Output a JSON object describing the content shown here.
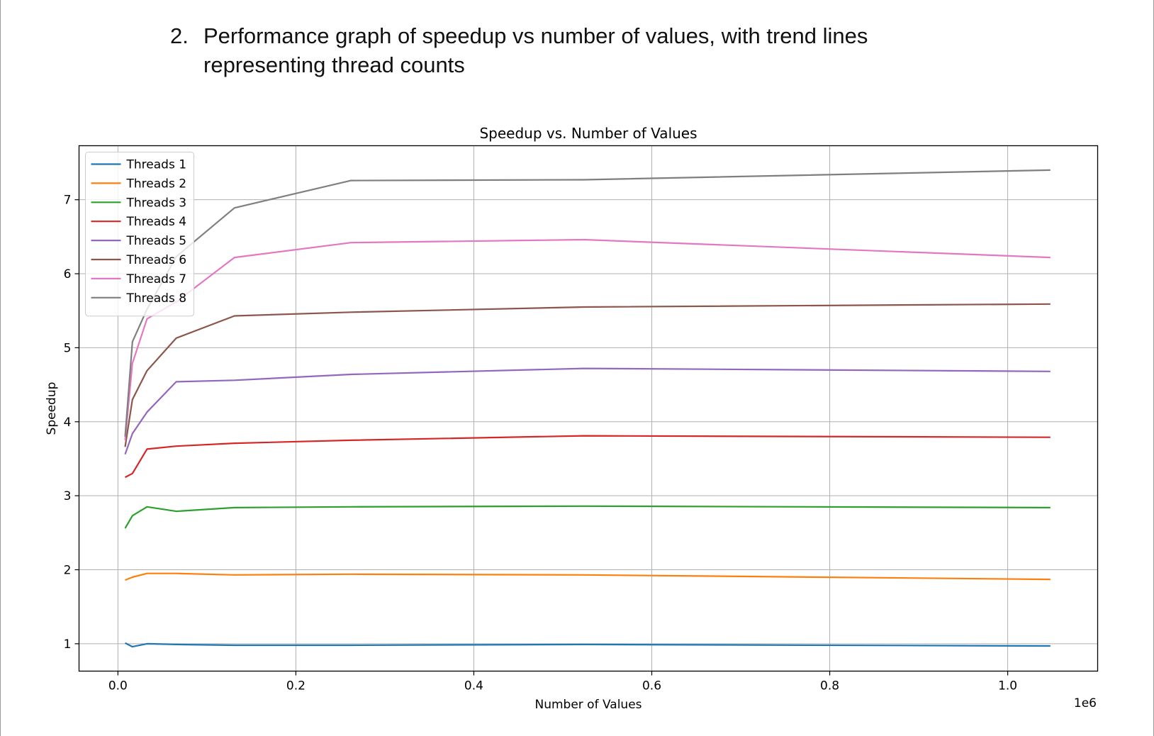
{
  "document": {
    "item_number": "2.",
    "heading_lines": [
      "Performance graph of speedup vs number of values, with trend lines",
      "representing thread counts"
    ]
  },
  "chart_data": {
    "type": "line",
    "title": "Speedup vs. Number of Values",
    "xlabel": "Number of Values",
    "ylabel": "Speedup",
    "x_offset_text": "1e6",
    "x_scale_factor": 1000000,
    "xlim": [
      -0.0437,
      1.1011
    ],
    "ylim": [
      0.63,
      7.73
    ],
    "x_ticks": [
      0.0,
      0.2,
      0.4,
      0.6,
      0.8,
      1.0
    ],
    "x_tick_labels": [
      "0.0",
      "0.2",
      "0.4",
      "0.6",
      "0.8",
      "1.0"
    ],
    "y_ticks": [
      1,
      2,
      3,
      4,
      5,
      6,
      7
    ],
    "y_tick_labels": [
      "1",
      "2",
      "3",
      "4",
      "5",
      "6",
      "7"
    ],
    "grid": true,
    "legend_position": "top-left",
    "x": [
      0.0081,
      0.0163,
      0.0327,
      0.0655,
      0.131,
      0.262,
      0.524,
      1.048
    ],
    "series": [
      {
        "name": "Threads 1",
        "color": "#1f77b4",
        "values": [
          1.01,
          0.96,
          1.0,
          0.99,
          0.98,
          0.98,
          0.99,
          0.97
        ]
      },
      {
        "name": "Threads 2",
        "color": "#ff7f0e",
        "values": [
          1.86,
          1.9,
          1.95,
          1.95,
          1.93,
          1.94,
          1.93,
          1.87
        ]
      },
      {
        "name": "Threads 3",
        "color": "#2ca02c",
        "values": [
          2.56,
          2.73,
          2.85,
          2.79,
          2.84,
          2.85,
          2.86,
          2.84
        ]
      },
      {
        "name": "Threads 4",
        "color": "#d62728",
        "values": [
          3.25,
          3.3,
          3.63,
          3.67,
          3.71,
          3.75,
          3.81,
          3.79
        ]
      },
      {
        "name": "Threads 5",
        "color": "#9467bd",
        "values": [
          3.56,
          3.84,
          4.13,
          4.54,
          4.56,
          4.64,
          4.72,
          4.68
        ]
      },
      {
        "name": "Threads 6",
        "color": "#8c564b",
        "values": [
          3.66,
          4.3,
          4.69,
          5.13,
          5.43,
          5.48,
          5.55,
          5.59
        ]
      },
      {
        "name": "Threads 7",
        "color": "#e377c2",
        "values": [
          3.75,
          4.79,
          5.39,
          5.62,
          6.22,
          6.42,
          6.46,
          6.22
        ]
      },
      {
        "name": "Threads 8",
        "color": "#7f7f7f",
        "values": [
          3.8,
          5.08,
          5.52,
          6.23,
          6.89,
          7.26,
          7.27,
          7.4
        ]
      }
    ]
  }
}
